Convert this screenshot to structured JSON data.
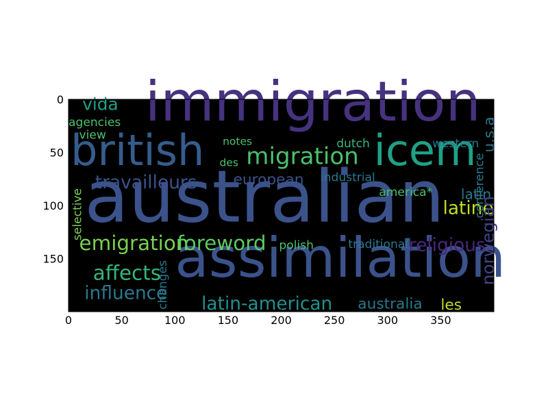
{
  "chart_data": {
    "type": "wordcloud",
    "title": "",
    "xlabel": "",
    "ylabel": "",
    "xlim": [
      0,
      400
    ],
    "ylim": [
      200,
      0
    ],
    "x_ticks": [
      0,
      50,
      100,
      150,
      200,
      250,
      300,
      350
    ],
    "y_ticks": [
      0,
      50,
      100,
      150
    ],
    "grid": false,
    "background": "#000000",
    "words": [
      {
        "text": "immigration",
        "x": 72,
        "y": 20,
        "size": 52,
        "color": "#46327e"
      },
      {
        "text": "british",
        "x": 2,
        "y": 62,
        "size": 40,
        "color": "#365c8d"
      },
      {
        "text": "icem",
        "x": 287,
        "y": 62,
        "size": 40,
        "color": "#1fa187"
      },
      {
        "text": "migration",
        "x": 167,
        "y": 61,
        "size": 22,
        "color": "#4ac16d"
      },
      {
        "text": "australian",
        "x": 15,
        "y": 115,
        "size": 68,
        "color": "#3b528b"
      },
      {
        "text": "assimilation",
        "x": 100,
        "y": 167,
        "size": 52,
        "color": "#3b528b"
      },
      {
        "text": "vida",
        "x": 13,
        "y": 10,
        "size": 16,
        "color": "#1fa187"
      },
      {
        "text": "agencies",
        "x": 0,
        "y": 25,
        "size": 11,
        "color": "#4ac16d"
      },
      {
        "text": "view",
        "x": 10,
        "y": 37,
        "size": 11,
        "color": "#4ac16d"
      },
      {
        "text": "notes",
        "x": 145,
        "y": 43,
        "size": 10,
        "color": "#4ac16d"
      },
      {
        "text": "des",
        "x": 142,
        "y": 63,
        "size": 10,
        "color": "#4ac16d"
      },
      {
        "text": "dutch",
        "x": 252,
        "y": 45,
        "size": 11,
        "color": "#35b779"
      },
      {
        "text": "western",
        "x": 342,
        "y": 45,
        "size": 11,
        "color": "#2a788e"
      },
      {
        "text": "travailleurs",
        "x": 25,
        "y": 84,
        "size": 17,
        "color": "#3b528b"
      },
      {
        "text": "european",
        "x": 155,
        "y": 80,
        "size": 14,
        "color": "#3b528b"
      },
      {
        "text": "industrial",
        "x": 237,
        "y": 77,
        "size": 11,
        "color": "#2a788e"
      },
      {
        "text": "america*",
        "x": 292,
        "y": 91,
        "size": 11,
        "color": "#4ac16d"
      },
      {
        "text": "latin",
        "x": 369,
        "y": 94,
        "size": 13,
        "color": "#2a788e"
      },
      {
        "text": "latine",
        "x": 352,
        "y": 108,
        "size": 17,
        "color": "#bddf26"
      },
      {
        "text": "emigration",
        "x": 10,
        "y": 142,
        "size": 19,
        "color": "#7ad151"
      },
      {
        "text": "foreword",
        "x": 102,
        "y": 142,
        "size": 19,
        "color": "#5ec962"
      },
      {
        "text": "polish",
        "x": 198,
        "y": 141,
        "size": 11,
        "color": "#4ac16d"
      },
      {
        "text": "traditional",
        "x": 263,
        "y": 140,
        "size": 11,
        "color": "#2a788e"
      },
      {
        "text": "religious",
        "x": 320,
        "y": 143,
        "size": 17,
        "color": "#482878"
      },
      {
        "text": "affects",
        "x": 23,
        "y": 170,
        "size": 19,
        "color": "#35b779"
      },
      {
        "text": "influence",
        "x": 15,
        "y": 188,
        "size": 17,
        "color": "#2a788e"
      },
      {
        "text": "latin-american",
        "x": 125,
        "y": 198,
        "size": 17,
        "color": "#21918c"
      },
      {
        "text": "australia",
        "x": 272,
        "y": 197,
        "size": 14,
        "color": "#2a788e"
      },
      {
        "text": "les",
        "x": 350,
        "y": 198,
        "size": 14,
        "color": "#bddf26"
      },
      {
        "text": "u.s.a",
        "x": 400,
        "y": 50,
        "size": 14,
        "color": "#2a788e",
        "vertical": true
      },
      {
        "text": "conference",
        "x": 390,
        "y": 112,
        "size": 11,
        "color": "#2a788e",
        "vertical": true
      },
      {
        "text": "norwegian",
        "x": 400,
        "y": 175,
        "size": 16,
        "color": "#414487",
        "vertical": true
      },
      {
        "text": "selective",
        "x": 12,
        "y": 133,
        "size": 11,
        "color": "#7ad151",
        "vertical": true
      },
      {
        "text": "changes",
        "x": 92,
        "y": 198,
        "size": 11,
        "color": "#2a788e",
        "vertical": true
      }
    ]
  }
}
